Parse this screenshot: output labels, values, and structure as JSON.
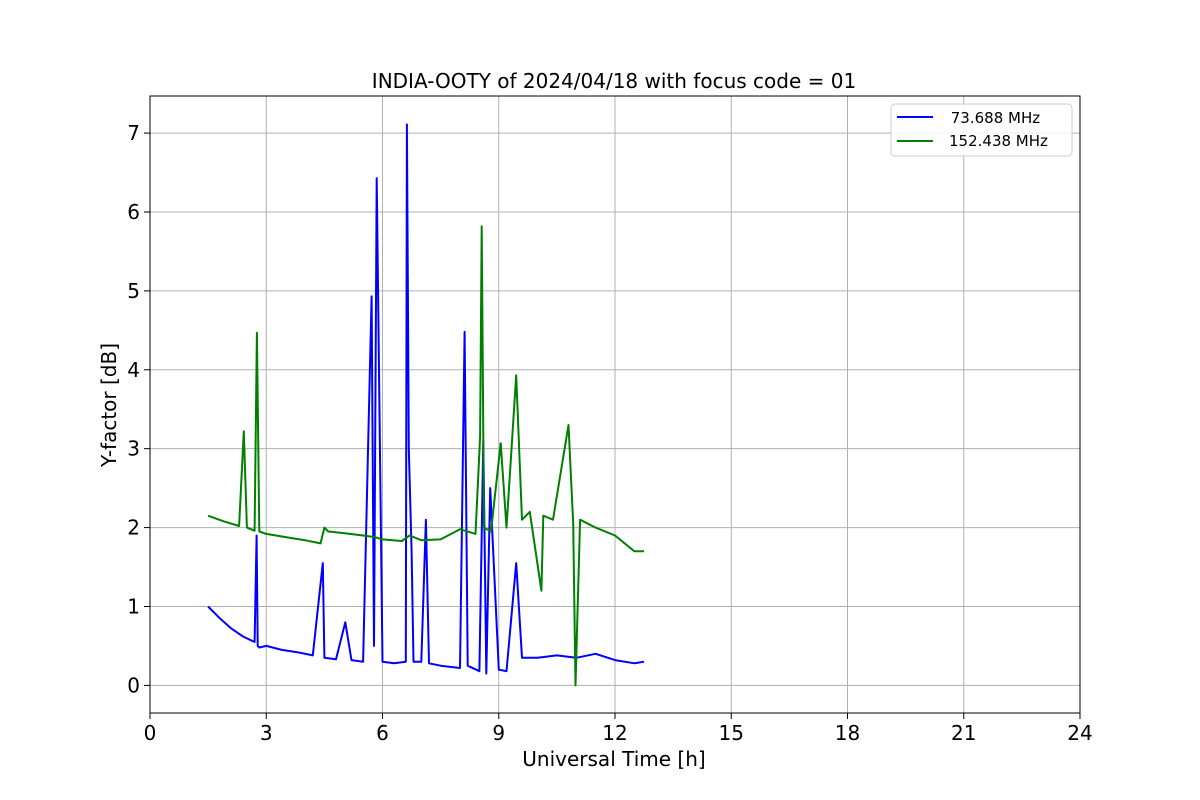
{
  "chart_data": {
    "type": "line",
    "title": "INDIA-OOTY of 2024/04/18 with focus code = 01",
    "xlabel": "Universal Time [h]",
    "ylabel": "Y-factor [dB]",
    "xlim": [
      0,
      24
    ],
    "ylim": [
      -0.35,
      7.47
    ],
    "xticks": [
      0,
      3,
      6,
      9,
      12,
      15,
      18,
      21,
      24
    ],
    "xtick_labels": [
      "0",
      "3",
      "6",
      "9",
      "12",
      "15",
      "18",
      "21",
      "24"
    ],
    "yticks": [
      0,
      1,
      2,
      3,
      4,
      5,
      6,
      7
    ],
    "ytick_labels": [
      "0",
      "1",
      "2",
      "3",
      "4",
      "5",
      "6",
      "7"
    ],
    "grid": true,
    "legend_position": "top-right",
    "series": [
      {
        "name": " 73.688 MHz",
        "color": "#0000ff",
        "x": [
          1.5,
          1.8,
          2.1,
          2.4,
          2.7,
          2.75,
          2.78,
          2.82,
          3.0,
          3.4,
          3.8,
          4.2,
          4.46,
          4.5,
          4.8,
          5.04,
          5.2,
          5.5,
          5.72,
          5.78,
          5.85,
          6.0,
          6.3,
          6.6,
          6.63,
          6.68,
          6.75,
          6.8,
          7.0,
          7.12,
          7.2,
          7.5,
          8.0,
          8.12,
          8.2,
          8.5,
          8.6,
          8.68,
          8.78,
          9.0,
          9.2,
          9.45,
          9.6,
          10.0,
          10.5,
          11.0,
          11.5,
          12.0,
          12.5,
          12.75
        ],
        "y": [
          1.0,
          0.85,
          0.72,
          0.62,
          0.55,
          1.9,
          0.5,
          0.48,
          0.5,
          0.45,
          0.42,
          0.38,
          1.55,
          0.35,
          0.33,
          0.8,
          0.32,
          0.3,
          4.93,
          0.5,
          6.43,
          0.3,
          0.28,
          0.3,
          7.11,
          3.0,
          1.7,
          0.3,
          0.3,
          2.1,
          0.28,
          0.25,
          0.22,
          4.48,
          0.25,
          0.18,
          3.1,
          0.15,
          2.5,
          0.2,
          0.18,
          1.55,
          0.35,
          0.35,
          0.38,
          0.35,
          0.4,
          0.32,
          0.28,
          0.3
        ]
      },
      {
        "name": "152.438 MHz",
        "color": "#008000",
        "x": [
          1.5,
          1.9,
          2.3,
          2.42,
          2.5,
          2.7,
          2.76,
          2.82,
          3.0,
          3.5,
          4.0,
          4.4,
          4.5,
          4.6,
          5.0,
          5.5,
          5.8,
          6.0,
          6.5,
          6.7,
          7.0,
          7.5,
          8.0,
          8.4,
          8.52,
          8.56,
          8.62,
          8.8,
          9.05,
          9.2,
          9.45,
          9.6,
          9.8,
          10.1,
          10.15,
          10.4,
          10.8,
          10.92,
          10.98,
          11.1,
          11.5,
          12.0,
          12.5,
          12.75
        ],
        "y": [
          2.15,
          2.08,
          2.02,
          3.22,
          2.0,
          1.96,
          4.47,
          1.95,
          1.92,
          1.88,
          1.84,
          1.8,
          2.0,
          1.95,
          1.93,
          1.9,
          1.88,
          1.85,
          1.83,
          1.9,
          1.84,
          1.85,
          1.98,
          1.92,
          3.15,
          5.82,
          2.0,
          1.95,
          3.07,
          2.0,
          3.93,
          2.1,
          2.2,
          1.2,
          2.15,
          2.1,
          3.3,
          2.05,
          0.0,
          2.1,
          2.0,
          1.9,
          1.7,
          1.7
        ]
      }
    ]
  }
}
